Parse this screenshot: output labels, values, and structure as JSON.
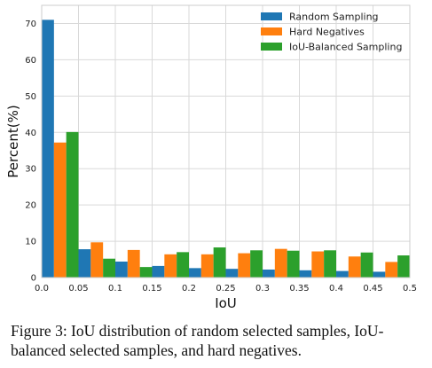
{
  "chart_data": {
    "type": "bar",
    "xlabel": "IoU",
    "ylabel": "Percent(%)",
    "xlim": [
      0.0,
      0.5
    ],
    "ylim": [
      0,
      75
    ],
    "x_bins": [
      0.025,
      0.075,
      0.125,
      0.175,
      0.225,
      0.275,
      0.325,
      0.375,
      0.425,
      0.475
    ],
    "x_ticks": [
      "0.0",
      "0.05",
      "0.1",
      "0.15",
      "0.2",
      "0.25",
      "0.3",
      "0.35",
      "0.4",
      "0.45",
      "0.5"
    ],
    "y_ticks": [
      "0",
      "10",
      "20",
      "30",
      "40",
      "50",
      "60",
      "70"
    ],
    "grid": true,
    "legend_position": "top-right",
    "series": [
      {
        "name": "Random Sampling",
        "color": "#1f77b4",
        "values": [
          71.0,
          7.8,
          4.4,
          3.2,
          2.6,
          2.4,
          2.2,
          2.0,
          1.8,
          1.6
        ]
      },
      {
        "name": "Hard Negatives",
        "color": "#ff7f0e",
        "values": [
          37.2,
          9.7,
          7.6,
          6.4,
          6.4,
          6.7,
          7.9,
          7.2,
          5.8,
          4.3
        ]
      },
      {
        "name": "IoU-Balanced Sampling",
        "color": "#2ca02c",
        "values": [
          40.1,
          5.2,
          2.9,
          7.0,
          8.3,
          7.5,
          7.4,
          7.5,
          6.9,
          6.1
        ]
      }
    ]
  },
  "caption": "Figure 3: IoU distribution of random selected samples, IoU-balanced selected samples, and hard negatives."
}
